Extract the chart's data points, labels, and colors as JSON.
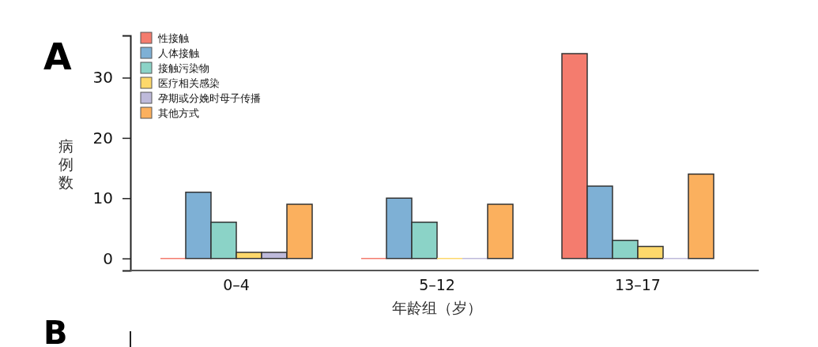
{
  "chart_data": {
    "type": "bar",
    "title": "A",
    "xlabel": "年龄组（岁）",
    "ylabel": "病例数",
    "categories": [
      "0–4",
      "5–12",
      "13–17"
    ],
    "series": [
      {
        "name": "性接触",
        "color": "#f47c6e",
        "values": [
          0,
          0,
          34
        ]
      },
      {
        "name": "人体接触",
        "color": "#7eb0d5",
        "values": [
          11,
          10,
          12
        ]
      },
      {
        "name": "接触污染物",
        "color": "#8bd3c7",
        "values": [
          6,
          6,
          3
        ]
      },
      {
        "name": "医疗相关感染",
        "color": "#fdd86b",
        "values": [
          1,
          0,
          2
        ]
      },
      {
        "name": "孕期或分娩时母子传播",
        "color": "#bebada",
        "values": [
          1,
          0,
          0
        ]
      },
      {
        "name": "其他方式",
        "color": "#fbb05e",
        "values": [
          9,
          9,
          14
        ]
      }
    ],
    "ylim": [
      -2,
      37
    ],
    "yticks": [
      0,
      10,
      20,
      30
    ],
    "grid": false,
    "legend": "top left",
    "annotations": [
      "B"
    ]
  }
}
